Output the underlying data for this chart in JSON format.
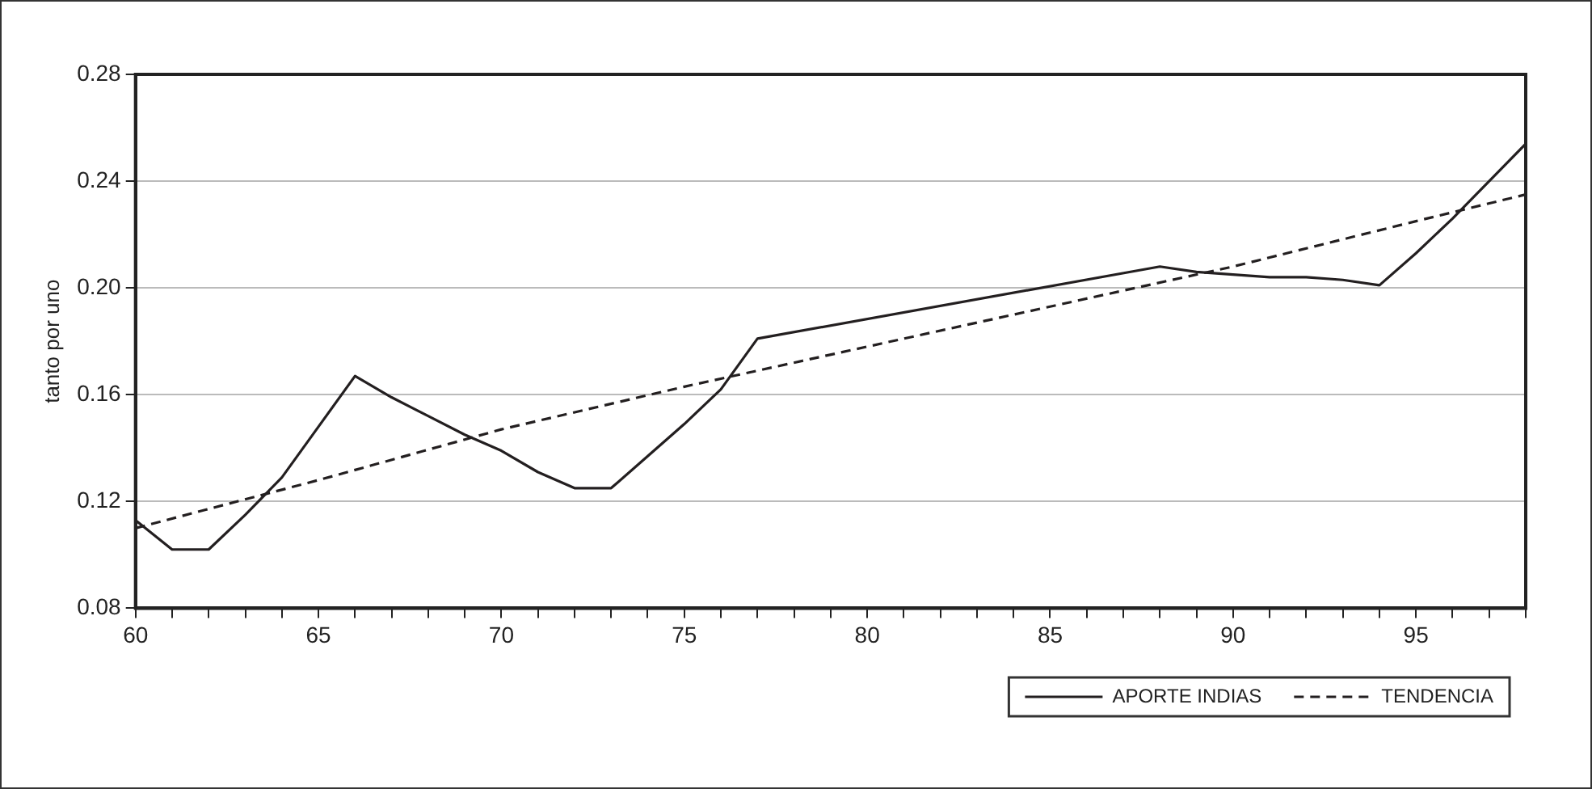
{
  "chart_data": {
    "type": "line",
    "ylabel": "tanto por uno",
    "xlim": [
      60,
      98
    ],
    "xticks": [
      60,
      {
        "value": 61,
        "label": null
      },
      {
        "value": 62,
        "label": null
      },
      {
        "value": 63,
        "label": null
      },
      {
        "value": 64,
        "label": null
      },
      65,
      {
        "value": 66,
        "label": null
      },
      {
        "value": 67,
        "label": null
      },
      {
        "value": 68,
        "label": null
      },
      {
        "value": 69,
        "label": null
      },
      70,
      {
        "value": 71,
        "label": null
      },
      {
        "value": 72,
        "label": null
      },
      {
        "value": 73,
        "label": null
      },
      {
        "value": 74,
        "label": null
      },
      75,
      {
        "value": 76,
        "label": null
      },
      {
        "value": 77,
        "label": null
      },
      {
        "value": 78,
        "label": null
      },
      {
        "value": 79,
        "label": null
      },
      80,
      {
        "value": 81,
        "label": null
      },
      {
        "value": 82,
        "label": null
      },
      {
        "value": 83,
        "label": null
      },
      {
        "value": 84,
        "label": null
      },
      85,
      {
        "value": 86,
        "label": null
      },
      {
        "value": 87,
        "label": null
      },
      {
        "value": 88,
        "label": null
      },
      {
        "value": 89,
        "label": null
      },
      90,
      {
        "value": 91,
        "label": null
      },
      {
        "value": 92,
        "label": null
      },
      {
        "value": 93,
        "label": null
      },
      {
        "value": 94,
        "label": null
      },
      95,
      {
        "value": 96,
        "label": null
      },
      {
        "value": 97,
        "label": null
      },
      {
        "value": 98,
        "label": null
      }
    ],
    "ylim": [
      0.08,
      0.28
    ],
    "yticks": [
      {
        "value": 0.08,
        "label": "0.08"
      },
      {
        "value": 0.12,
        "label": "0.12"
      },
      {
        "value": 0.16,
        "label": "0.16"
      },
      {
        "value": 0.2,
        "label": "0.20"
      },
      {
        "value": 0.24,
        "label": "0.24"
      },
      {
        "value": 0.28,
        "label": "0.28"
      }
    ],
    "grid": "y",
    "legend": "bottom right",
    "marker": "none",
    "series": [
      {
        "name": "APORTE INDIAS",
        "color": "#231f20",
        "line_style": "solid",
        "x": [
          60,
          61,
          62,
          63,
          64,
          65,
          66,
          67,
          68,
          69,
          70,
          71,
          72,
          73,
          74,
          75,
          76,
          77,
          88,
          89,
          90,
          91,
          92,
          93,
          94,
          95,
          96,
          97,
          98
        ],
        "values": [
          0.113,
          0.102,
          0.102,
          0.115,
          0.129,
          0.148,
          0.167,
          0.159,
          0.152,
          0.145,
          0.139,
          0.131,
          0.125,
          0.125,
          0.137,
          0.149,
          0.162,
          0.181,
          0.208,
          0.206,
          0.205,
          0.204,
          0.204,
          0.203,
          0.201,
          0.213,
          0.226,
          0.24,
          0.254
        ]
      },
      {
        "name": "TENDENCIA",
        "color": "#231f20",
        "line_style": "dashed",
        "x": [
          60,
          65,
          70,
          75,
          80,
          85,
          90,
          95,
          98
        ],
        "values": [
          0.11,
          0.128,
          0.147,
          0.163,
          0.178,
          0.193,
          0.208,
          0.225,
          0.235
        ]
      }
    ]
  }
}
